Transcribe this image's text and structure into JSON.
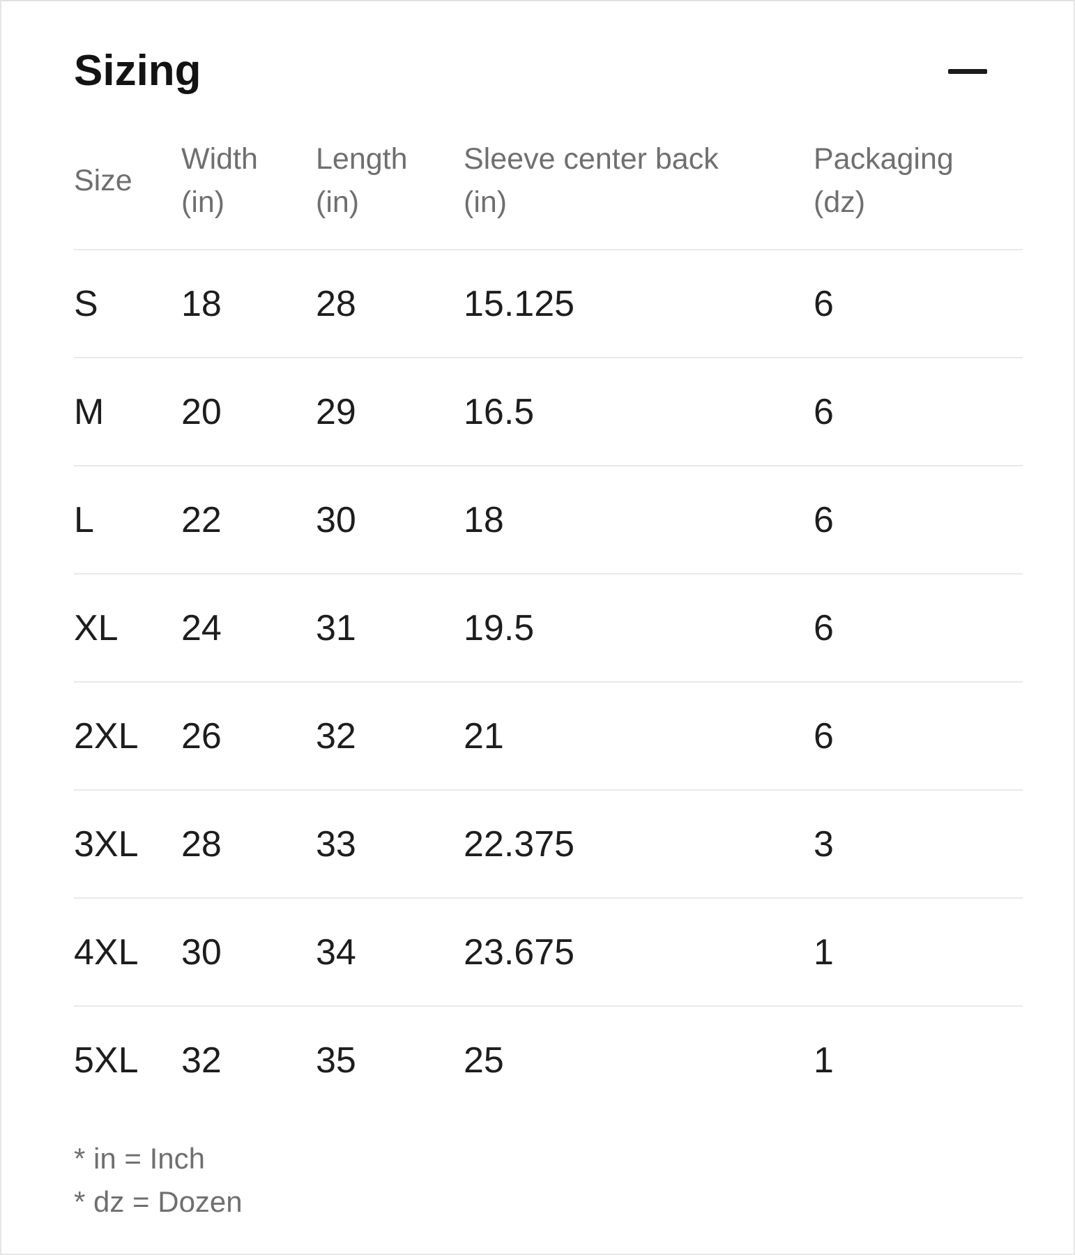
{
  "section": {
    "title": "Sizing"
  },
  "table": {
    "headers": [
      {
        "label": "Size",
        "unit": ""
      },
      {
        "label": "Width",
        "unit": "(in)"
      },
      {
        "label": "Length",
        "unit": "(in)"
      },
      {
        "label": "Sleeve center back",
        "unit": "(in)"
      },
      {
        "label": "Packaging",
        "unit": "(dz)"
      }
    ],
    "rows": [
      [
        "S",
        "18",
        "28",
        "15.125",
        "6"
      ],
      [
        "M",
        "20",
        "29",
        "16.5",
        "6"
      ],
      [
        "L",
        "22",
        "30",
        "18",
        "6"
      ],
      [
        "XL",
        "24",
        "31",
        "19.5",
        "6"
      ],
      [
        "2XL",
        "26",
        "32",
        "21",
        "6"
      ],
      [
        "3XL",
        "28",
        "33",
        "22.375",
        "3"
      ],
      [
        "4XL",
        "30",
        "34",
        "23.675",
        "1"
      ],
      [
        "5XL",
        "32",
        "35",
        "25",
        "1"
      ]
    ]
  },
  "footnotes": [
    "* in = Inch",
    "* dz = Dozen"
  ],
  "icons": {
    "collapse": "minus-icon"
  },
  "colors": {
    "title_text": "#131313",
    "cell_text": "#1d1d1d",
    "muted_text": "#6f6f6f",
    "row_divider": "#e9e9e9",
    "panel_border": "#e5e5e5",
    "icon": "#1b1b1b"
  }
}
